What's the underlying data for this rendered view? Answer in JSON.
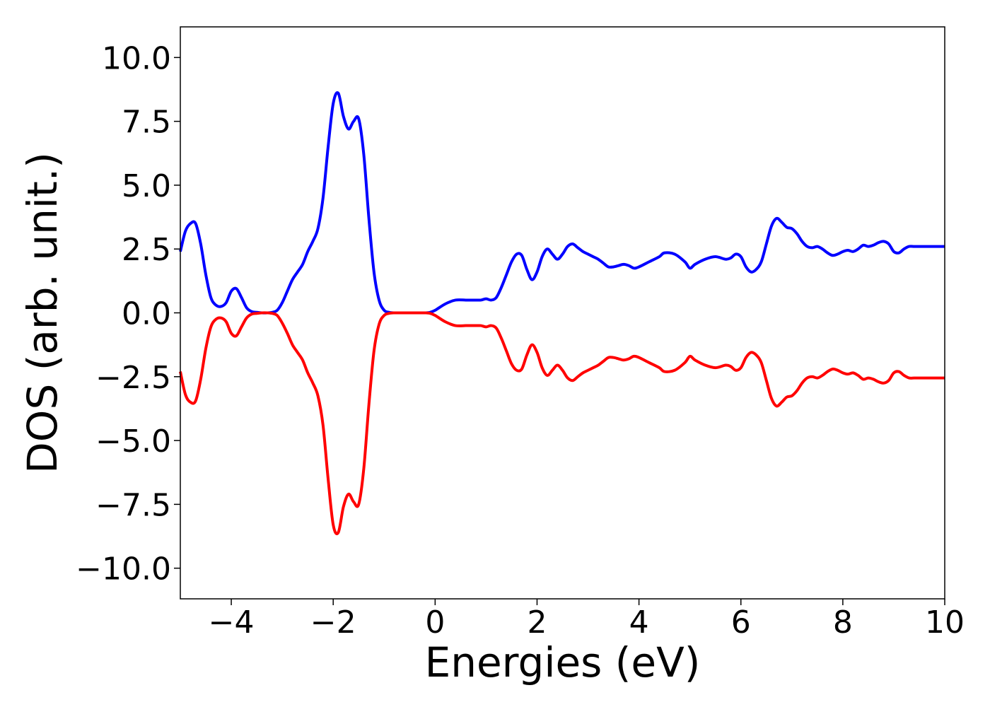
{
  "chart_data": {
    "type": "line",
    "title": "",
    "xlabel": "Energies (eV)",
    "ylabel": "DOS (arb. unit.)",
    "xlim": [
      -5,
      10
    ],
    "ylim": [
      -11.2,
      11.2
    ],
    "grid": false,
    "x_ticks": [
      {
        "value": -4,
        "label": "−4"
      },
      {
        "value": -2,
        "label": "−2"
      },
      {
        "value": 0,
        "label": "0"
      },
      {
        "value": 2,
        "label": "2"
      },
      {
        "value": 4,
        "label": "4"
      },
      {
        "value": 6,
        "label": "6"
      },
      {
        "value": 8,
        "label": "8"
      },
      {
        "value": 10,
        "label": "10"
      }
    ],
    "y_ticks": [
      {
        "value": 10,
        "label": "10.0"
      },
      {
        "value": 7.5,
        "label": "7.5"
      },
      {
        "value": 5,
        "label": "5.0"
      },
      {
        "value": 2.5,
        "label": "2.5"
      },
      {
        "value": 0,
        "label": "0.0"
      },
      {
        "value": -2.5,
        "label": "−2.5"
      },
      {
        "value": -5,
        "label": "−5.0"
      },
      {
        "value": -7.5,
        "label": "−7.5"
      },
      {
        "value": -10,
        "label": "−10.0"
      }
    ],
    "series": [
      {
        "color": "#0000ff",
        "x": [
          -5.0,
          -4.9,
          -4.8,
          -4.7,
          -4.6,
          -4.5,
          -4.4,
          -4.3,
          -4.2,
          -4.1,
          -4.0,
          -3.9,
          -3.8,
          -3.7,
          -3.6,
          -3.5,
          -3.4,
          -3.3,
          -3.2,
          -3.1,
          -3.0,
          -2.9,
          -2.8,
          -2.7,
          -2.6,
          -2.5,
          -2.4,
          -2.3,
          -2.2,
          -2.1,
          -2.0,
          -1.9,
          -1.8,
          -1.7,
          -1.6,
          -1.5,
          -1.4,
          -1.3,
          -1.2,
          -1.1,
          -1.0,
          -0.9,
          -0.8,
          -0.7,
          -0.6,
          -0.5,
          -0.4,
          -0.3,
          -0.2,
          -0.1,
          0.0,
          0.2,
          0.4,
          0.6,
          0.7,
          0.8,
          0.9,
          1.0,
          1.1,
          1.2,
          1.3,
          1.4,
          1.5,
          1.6,
          1.7,
          1.8,
          1.9,
          2.0,
          2.1,
          2.2,
          2.3,
          2.4,
          2.5,
          2.6,
          2.7,
          2.8,
          2.9,
          3.0,
          3.1,
          3.2,
          3.3,
          3.4,
          3.5,
          3.6,
          3.7,
          3.8,
          3.9,
          4.0,
          4.2,
          4.4,
          4.5,
          4.7,
          4.9,
          5.0,
          5.1,
          5.3,
          5.5,
          5.7,
          5.8,
          5.9,
          6.0,
          6.1,
          6.2,
          6.3,
          6.4,
          6.5,
          6.6,
          6.7,
          6.8,
          6.9,
          7.0,
          7.1,
          7.2,
          7.3,
          7.4,
          7.5,
          7.6,
          7.7,
          7.8,
          7.9,
          8.0,
          8.1,
          8.2,
          8.3,
          8.4,
          8.5,
          8.6,
          8.7,
          8.8,
          8.9,
          9.0,
          9.1,
          9.2,
          9.3,
          9.4,
          9.5,
          9.6,
          9.7,
          9.8,
          9.9,
          10.0
        ],
        "y": [
          2.4,
          3.2,
          3.5,
          3.5,
          2.7,
          1.5,
          0.6,
          0.3,
          0.25,
          0.4,
          0.85,
          0.95,
          0.6,
          0.2,
          0.05,
          0.02,
          0.0,
          0.0,
          0.02,
          0.1,
          0.4,
          0.85,
          1.3,
          1.6,
          1.9,
          2.4,
          2.8,
          3.3,
          4.5,
          6.5,
          8.2,
          8.6,
          7.7,
          7.2,
          7.5,
          7.6,
          6.2,
          3.7,
          1.6,
          0.5,
          0.1,
          0.02,
          0.0,
          0.0,
          0.0,
          0.0,
          0.0,
          0.0,
          0.0,
          0.02,
          0.1,
          0.35,
          0.5,
          0.5,
          0.5,
          0.5,
          0.5,
          0.55,
          0.5,
          0.6,
          1.0,
          1.5,
          2.0,
          2.3,
          2.25,
          1.7,
          1.3,
          1.6,
          2.2,
          2.5,
          2.3,
          2.1,
          2.3,
          2.6,
          2.7,
          2.55,
          2.4,
          2.3,
          2.2,
          2.1,
          1.95,
          1.8,
          1.8,
          1.85,
          1.9,
          1.85,
          1.75,
          1.8,
          2.0,
          2.2,
          2.35,
          2.3,
          2.0,
          1.75,
          1.9,
          2.1,
          2.2,
          2.1,
          2.15,
          2.3,
          2.2,
          1.8,
          1.6,
          1.7,
          2.0,
          2.7,
          3.4,
          3.7,
          3.55,
          3.35,
          3.3,
          3.1,
          2.8,
          2.6,
          2.55,
          2.6,
          2.5,
          2.35,
          2.25,
          2.3,
          2.4,
          2.45,
          2.4,
          2.5,
          2.65,
          2.6,
          2.65,
          2.75,
          2.8,
          2.7,
          2.4,
          2.35,
          2.5,
          2.6,
          2.6,
          2.6,
          2.6,
          2.6,
          2.6,
          2.6,
          2.6
        ]
      },
      {
        "color": "#ff0000",
        "x": [
          -5.0,
          -4.9,
          -4.8,
          -4.7,
          -4.6,
          -4.5,
          -4.4,
          -4.3,
          -4.2,
          -4.1,
          -4.0,
          -3.9,
          -3.8,
          -3.7,
          -3.6,
          -3.5,
          -3.4,
          -3.3,
          -3.2,
          -3.1,
          -3.0,
          -2.9,
          -2.8,
          -2.7,
          -2.6,
          -2.5,
          -2.4,
          -2.3,
          -2.2,
          -2.1,
          -2.0,
          -1.9,
          -1.8,
          -1.7,
          -1.6,
          -1.5,
          -1.4,
          -1.3,
          -1.2,
          -1.1,
          -1.0,
          -0.9,
          -0.8,
          -0.7,
          -0.6,
          -0.5,
          -0.4,
          -0.3,
          -0.2,
          -0.1,
          0.0,
          0.2,
          0.4,
          0.6,
          0.7,
          0.8,
          0.9,
          1.0,
          1.1,
          1.2,
          1.3,
          1.4,
          1.5,
          1.6,
          1.7,
          1.8,
          1.9,
          2.0,
          2.1,
          2.2,
          2.3,
          2.4,
          2.5,
          2.6,
          2.7,
          2.8,
          2.9,
          3.0,
          3.1,
          3.2,
          3.3,
          3.4,
          3.5,
          3.6,
          3.7,
          3.8,
          3.9,
          4.0,
          4.2,
          4.4,
          4.5,
          4.7,
          4.9,
          5.0,
          5.1,
          5.3,
          5.5,
          5.7,
          5.8,
          5.9,
          6.0,
          6.1,
          6.2,
          6.3,
          6.4,
          6.5,
          6.6,
          6.7,
          6.8,
          6.9,
          7.0,
          7.1,
          7.2,
          7.3,
          7.4,
          7.5,
          7.6,
          7.7,
          7.8,
          7.9,
          8.0,
          8.1,
          8.2,
          8.3,
          8.4,
          8.5,
          8.6,
          8.7,
          8.8,
          8.9,
          9.0,
          9.1,
          9.2,
          9.3,
          9.4,
          9.5,
          9.6,
          9.7,
          9.8,
          9.9,
          10.0
        ],
        "y": [
          -2.3,
          -3.2,
          -3.5,
          -3.45,
          -2.6,
          -1.4,
          -0.55,
          -0.25,
          -0.2,
          -0.35,
          -0.8,
          -0.9,
          -0.55,
          -0.2,
          -0.05,
          -0.02,
          0.0,
          0.0,
          -0.02,
          -0.1,
          -0.4,
          -0.8,
          -1.25,
          -1.55,
          -1.85,
          -2.35,
          -2.75,
          -3.25,
          -4.4,
          -6.5,
          -8.3,
          -8.6,
          -7.6,
          -7.1,
          -7.4,
          -7.5,
          -6.1,
          -3.6,
          -1.5,
          -0.45,
          -0.1,
          -0.02,
          0.0,
          0.0,
          0.0,
          0.0,
          0.0,
          0.0,
          0.0,
          -0.02,
          -0.1,
          -0.35,
          -0.5,
          -0.5,
          -0.5,
          -0.5,
          -0.5,
          -0.55,
          -0.5,
          -0.6,
          -1.0,
          -1.5,
          -2.0,
          -2.25,
          -2.2,
          -1.65,
          -1.25,
          -1.55,
          -2.15,
          -2.45,
          -2.25,
          -2.05,
          -2.25,
          -2.55,
          -2.65,
          -2.5,
          -2.35,
          -2.25,
          -2.15,
          -2.05,
          -1.9,
          -1.75,
          -1.75,
          -1.8,
          -1.85,
          -1.8,
          -1.7,
          -1.75,
          -1.95,
          -2.15,
          -2.3,
          -2.25,
          -1.95,
          -1.7,
          -1.85,
          -2.05,
          -2.15,
          -2.05,
          -2.1,
          -2.25,
          -2.15,
          -1.75,
          -1.55,
          -1.65,
          -1.95,
          -2.65,
          -3.35,
          -3.65,
          -3.5,
          -3.3,
          -3.25,
          -3.05,
          -2.75,
          -2.55,
          -2.5,
          -2.55,
          -2.45,
          -2.3,
          -2.2,
          -2.25,
          -2.35,
          -2.4,
          -2.35,
          -2.45,
          -2.6,
          -2.55,
          -2.6,
          -2.7,
          -2.75,
          -2.65,
          -2.35,
          -2.3,
          -2.45,
          -2.55,
          -2.55,
          -2.55,
          -2.55,
          -2.55,
          -2.55,
          -2.55,
          -2.55
        ]
      }
    ]
  }
}
